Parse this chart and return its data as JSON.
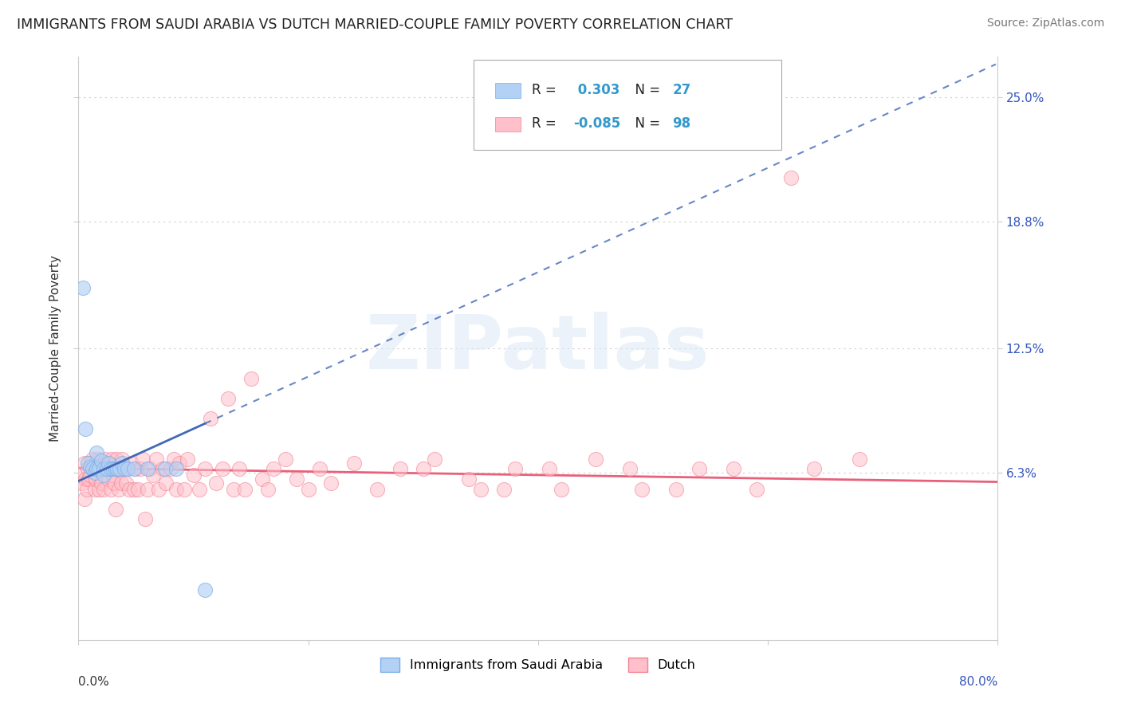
{
  "title": "IMMIGRANTS FROM SAUDI ARABIA VS DUTCH MARRIED-COUPLE FAMILY POVERTY CORRELATION CHART",
  "source": "Source: ZipAtlas.com",
  "ylabel": "Married-Couple Family Poverty",
  "ytick_labels": [
    "25.0%",
    "18.8%",
    "12.5%",
    "6.3%"
  ],
  "ytick_values": [
    0.25,
    0.188,
    0.125,
    0.063
  ],
  "xlim": [
    0.0,
    0.8
  ],
  "ylim": [
    -0.02,
    0.27
  ],
  "watermark": "ZIPatlas",
  "saudi_color": "#b3d0f5",
  "dutch_color": "#ffc0cb",
  "saudi_edge_color": "#7aaee8",
  "dutch_edge_color": "#f08090",
  "saudi_line_color": "#4169b8",
  "dutch_line_color": "#e8607a",
  "legend_R1": "0.303",
  "legend_N1": "27",
  "legend_R2": "-0.085",
  "legend_N2": "98",
  "legend_label1": "Immigrants from Saudi Arabia",
  "legend_label2": "Dutch",
  "saudi_x": [
    0.004,
    0.006,
    0.008,
    0.01,
    0.012,
    0.014,
    0.016,
    0.016,
    0.018,
    0.02,
    0.022,
    0.022,
    0.025,
    0.026,
    0.028,
    0.03,
    0.032,
    0.034,
    0.036,
    0.038,
    0.04,
    0.043,
    0.048,
    0.06,
    0.075,
    0.085,
    0.11
  ],
  "saudi_y": [
    0.155,
    0.085,
    0.068,
    0.066,
    0.065,
    0.063,
    0.065,
    0.073,
    0.065,
    0.069,
    0.065,
    0.062,
    0.065,
    0.068,
    0.065,
    0.065,
    0.065,
    0.065,
    0.065,
    0.068,
    0.065,
    0.065,
    0.065,
    0.065,
    0.065,
    0.065,
    0.005
  ],
  "dutch_x": [
    0.002,
    0.003,
    0.005,
    0.005,
    0.006,
    0.007,
    0.008,
    0.009,
    0.01,
    0.011,
    0.012,
    0.014,
    0.015,
    0.016,
    0.017,
    0.018,
    0.019,
    0.02,
    0.021,
    0.022,
    0.023,
    0.025,
    0.026,
    0.027,
    0.028,
    0.029,
    0.03,
    0.031,
    0.032,
    0.033,
    0.035,
    0.036,
    0.037,
    0.038,
    0.04,
    0.041,
    0.042,
    0.044,
    0.046,
    0.048,
    0.05,
    0.052,
    0.054,
    0.056,
    0.058,
    0.06,
    0.062,
    0.065,
    0.068,
    0.07,
    0.073,
    0.076,
    0.08,
    0.083,
    0.085,
    0.088,
    0.092,
    0.095,
    0.1,
    0.105,
    0.11,
    0.115,
    0.12,
    0.125,
    0.13,
    0.135,
    0.14,
    0.145,
    0.15,
    0.16,
    0.165,
    0.17,
    0.18,
    0.19,
    0.2,
    0.21,
    0.22,
    0.24,
    0.26,
    0.28,
    0.31,
    0.34,
    0.37,
    0.41,
    0.45,
    0.49,
    0.54,
    0.59,
    0.64,
    0.68,
    0.3,
    0.35,
    0.38,
    0.42,
    0.48,
    0.52,
    0.57,
    0.62
  ],
  "dutch_y": [
    0.062,
    0.058,
    0.05,
    0.068,
    0.06,
    0.055,
    0.065,
    0.06,
    0.062,
    0.068,
    0.07,
    0.055,
    0.06,
    0.065,
    0.07,
    0.055,
    0.065,
    0.058,
    0.065,
    0.055,
    0.07,
    0.065,
    0.06,
    0.068,
    0.055,
    0.07,
    0.062,
    0.058,
    0.045,
    0.07,
    0.055,
    0.065,
    0.058,
    0.07,
    0.065,
    0.058,
    0.065,
    0.055,
    0.068,
    0.055,
    0.065,
    0.055,
    0.065,
    0.07,
    0.04,
    0.055,
    0.065,
    0.062,
    0.07,
    0.055,
    0.065,
    0.058,
    0.065,
    0.07,
    0.055,
    0.068,
    0.055,
    0.07,
    0.062,
    0.055,
    0.065,
    0.09,
    0.058,
    0.065,
    0.1,
    0.055,
    0.065,
    0.055,
    0.11,
    0.06,
    0.055,
    0.065,
    0.07,
    0.06,
    0.055,
    0.065,
    0.058,
    0.068,
    0.055,
    0.065,
    0.07,
    0.06,
    0.055,
    0.065,
    0.07,
    0.055,
    0.065,
    0.055,
    0.065,
    0.07,
    0.065,
    0.055,
    0.065,
    0.055,
    0.065,
    0.055,
    0.065,
    0.21
  ]
}
